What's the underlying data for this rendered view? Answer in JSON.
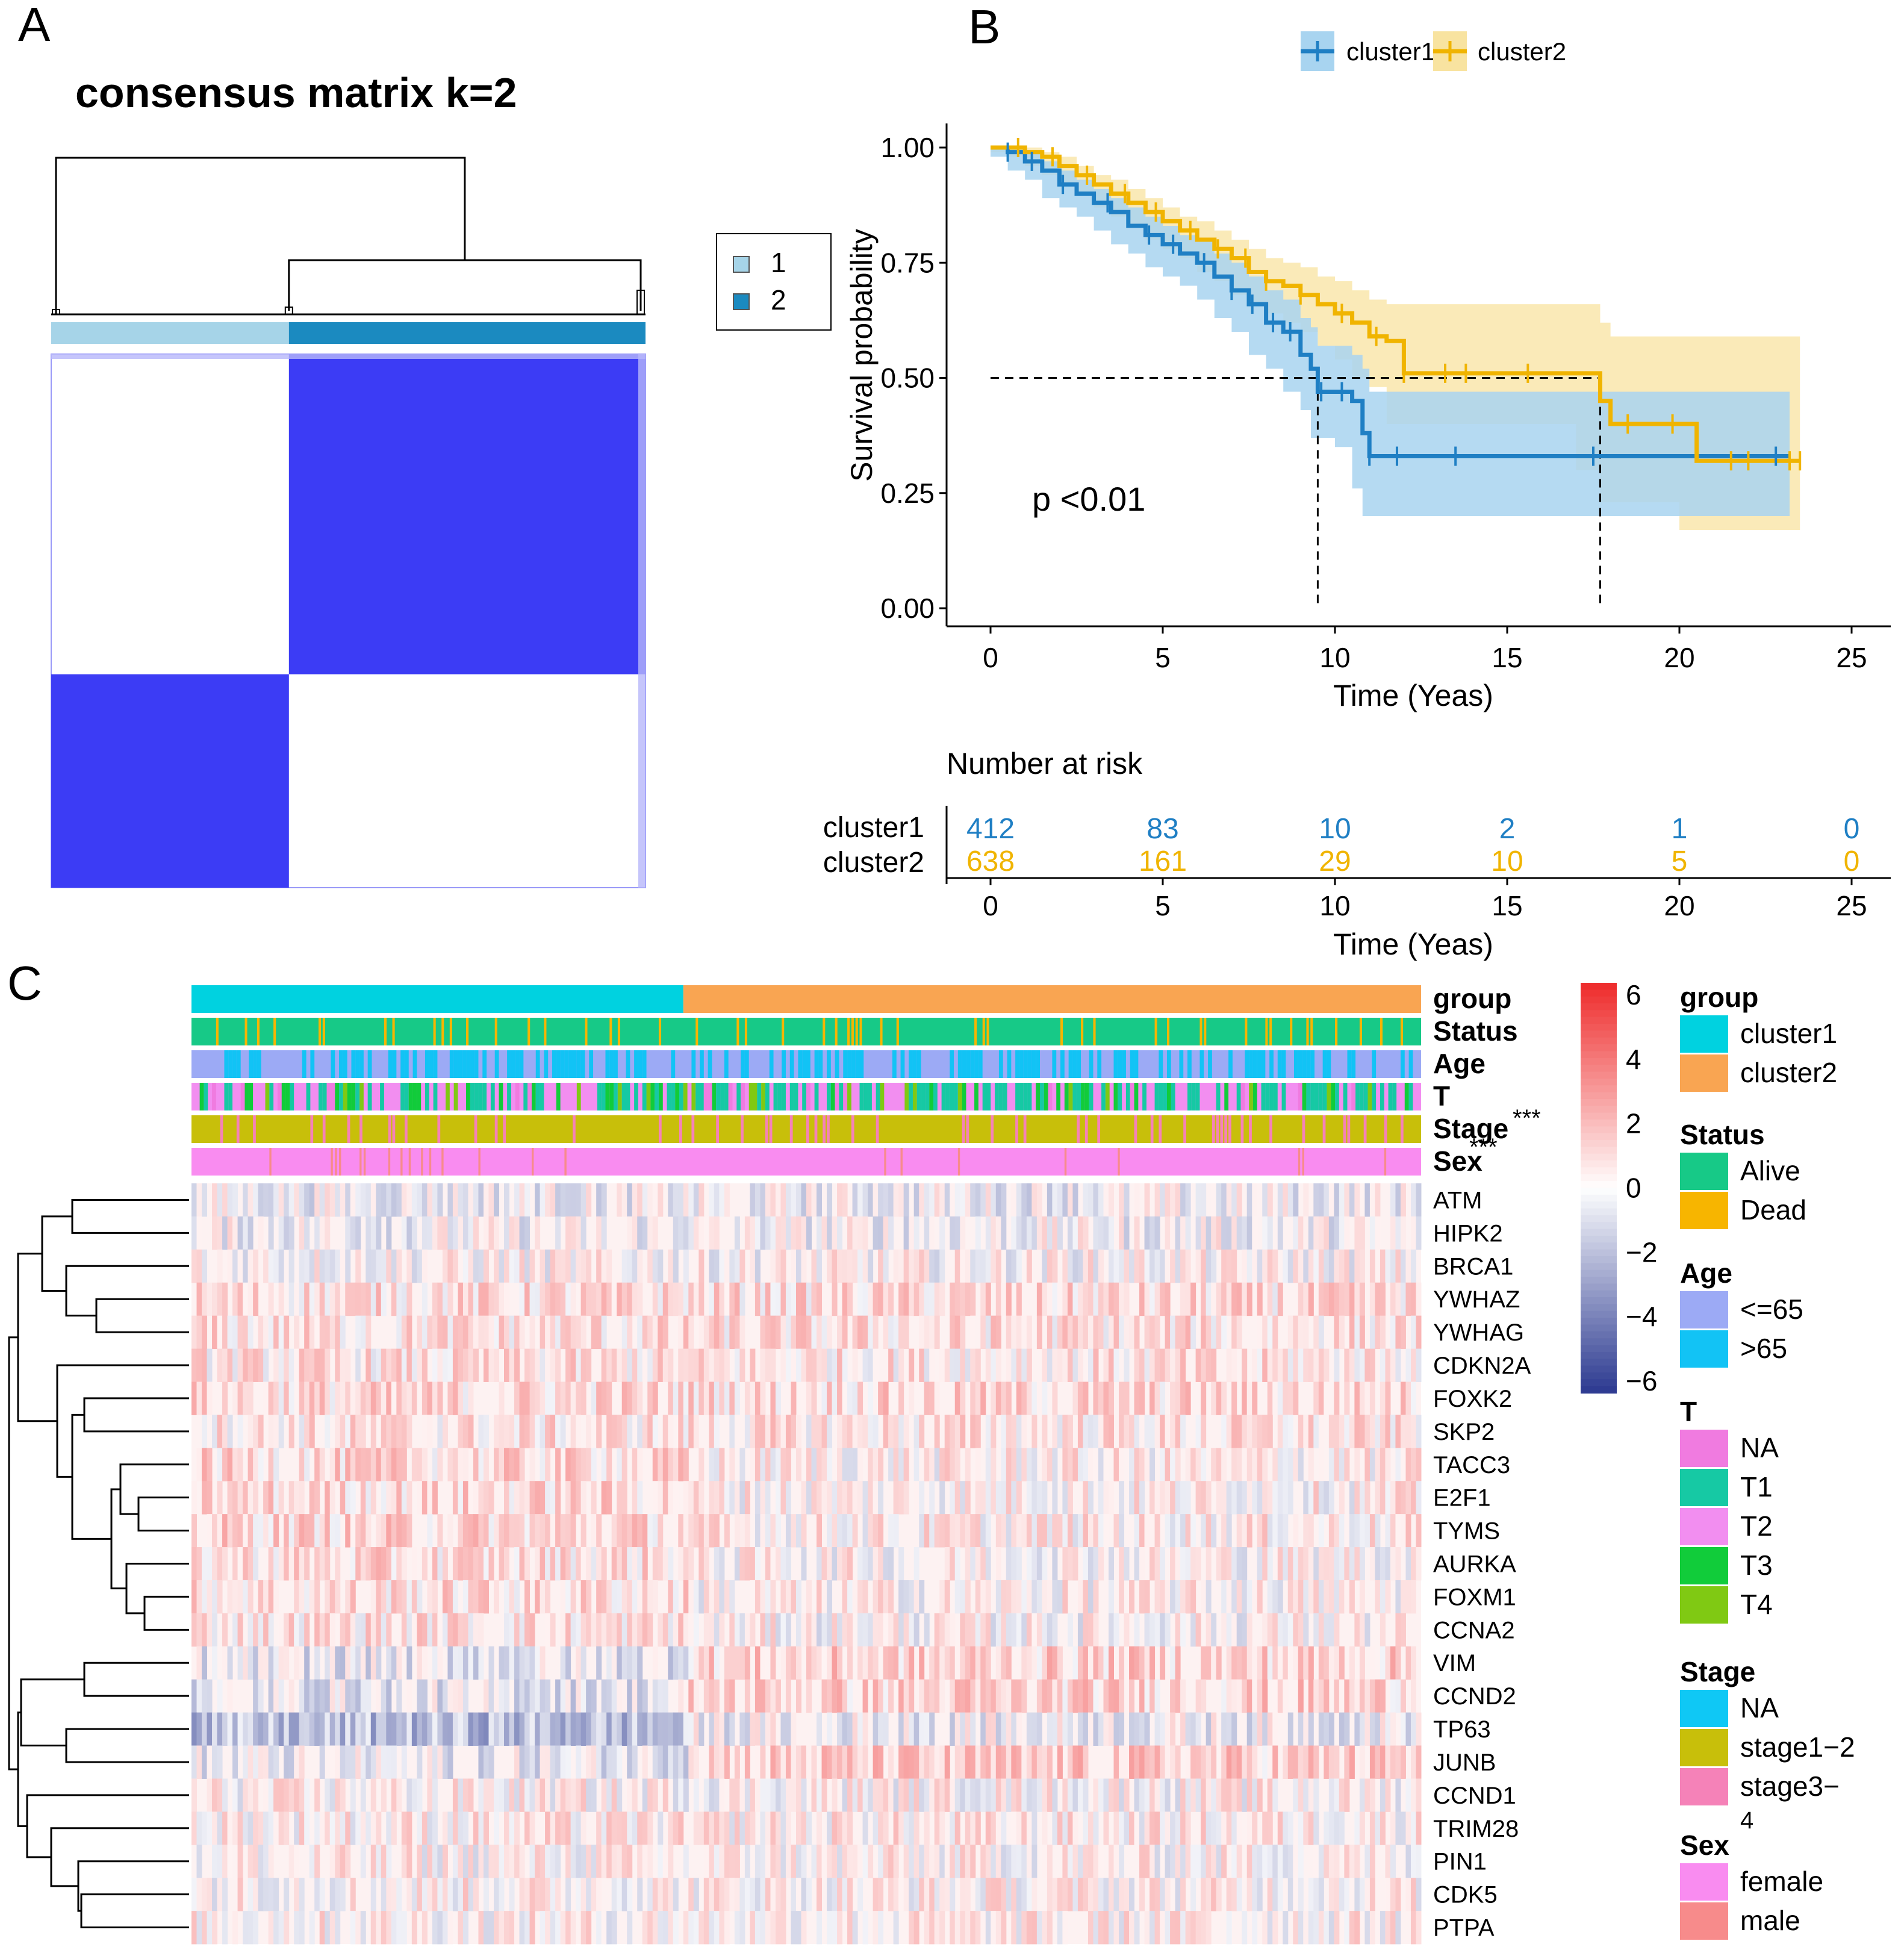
{
  "panels": {
    "a": "A",
    "b": "B",
    "c": "C"
  },
  "colors": {
    "cluster1": "#1f7fc4",
    "cluster1_band": "#a8d4f0",
    "cluster2": "#f0b400",
    "cluster2_band": "#f8e3a0",
    "consensus_blue": "#3c3cf5",
    "consensus_c1": "#a6d4e8",
    "consensus_c2": "#1b8ac0"
  },
  "chart_data": [
    {
      "type": "heatmap",
      "title": "consensus matrix k=2",
      "legend": [
        {
          "label": "1",
          "color": "#a6d4e8"
        },
        {
          "label": "2",
          "color": "#1b8ac0"
        }
      ],
      "legend_position": "right",
      "clusters": [
        {
          "name": "1",
          "fraction": 0.4
        },
        {
          "name": "2",
          "fraction": 0.6
        }
      ],
      "value_range": [
        0,
        1
      ]
    },
    {
      "type": "line",
      "subtype": "kaplan-meier",
      "xlabel": "Time (Yeas)",
      "ylabel": "Survival probability",
      "xlim": [
        0,
        25
      ],
      "ylim": [
        0,
        1
      ],
      "xticks": [
        "0",
        "5",
        "10",
        "15",
        "20",
        "25"
      ],
      "yticks": [
        "0.00",
        "0.25",
        "0.50",
        "0.75",
        "1.00"
      ],
      "annotation": "p <0.01",
      "legend_position": "top",
      "median_survival": {
        "cluster1": 9.5,
        "cluster2": 17.7
      },
      "series": [
        {
          "name": "cluster1",
          "x": [
            0,
            0.5,
            1,
            1.5,
            2,
            2.5,
            3,
            3.5,
            4,
            4.5,
            5,
            5.5,
            6,
            6.5,
            7,
            7.5,
            8,
            8.5,
            9,
            9.3,
            9.5,
            10,
            10.5,
            10.8,
            11,
            12,
            14,
            16,
            18,
            20,
            22,
            23.2
          ],
          "y": [
            1.0,
            0.99,
            0.97,
            0.95,
            0.92,
            0.9,
            0.88,
            0.86,
            0.83,
            0.81,
            0.79,
            0.77,
            0.75,
            0.72,
            0.69,
            0.66,
            0.62,
            0.6,
            0.55,
            0.52,
            0.47,
            0.47,
            0.45,
            0.38,
            0.33,
            0.33,
            0.33,
            0.33,
            0.33,
            0.33,
            0.33,
            0.33
          ],
          "upper": [
            1.0,
            1.0,
            0.99,
            0.97,
            0.95,
            0.93,
            0.91,
            0.89,
            0.87,
            0.85,
            0.83,
            0.81,
            0.8,
            0.77,
            0.75,
            0.72,
            0.69,
            0.67,
            0.63,
            0.61,
            0.57,
            0.57,
            0.55,
            0.52,
            0.47,
            0.47,
            0.47,
            0.47,
            0.47,
            0.47,
            0.47,
            0.47
          ],
          "lower": [
            1.0,
            0.98,
            0.95,
            0.93,
            0.89,
            0.87,
            0.85,
            0.82,
            0.79,
            0.77,
            0.74,
            0.72,
            0.7,
            0.67,
            0.63,
            0.6,
            0.55,
            0.52,
            0.47,
            0.43,
            0.37,
            0.37,
            0.35,
            0.26,
            0.2,
            0.2,
            0.2,
            0.2,
            0.2,
            0.2,
            0.2,
            0.2
          ]
        },
        {
          "name": "cluster2",
          "x": [
            0,
            0.5,
            1,
            1.5,
            2,
            2.5,
            3,
            3.5,
            4,
            4.5,
            5,
            5.5,
            6,
            6.5,
            7,
            7.5,
            8,
            8.5,
            9,
            9.5,
            10,
            10.5,
            11,
            11.5,
            12,
            13,
            14,
            15,
            16,
            17,
            17.7,
            18,
            19,
            20,
            20.5,
            21,
            22,
            23,
            23.5
          ],
          "y": [
            1.0,
            1.0,
            0.99,
            0.98,
            0.96,
            0.94,
            0.92,
            0.9,
            0.88,
            0.86,
            0.84,
            0.82,
            0.8,
            0.78,
            0.76,
            0.73,
            0.71,
            0.7,
            0.68,
            0.66,
            0.64,
            0.62,
            0.59,
            0.58,
            0.51,
            0.51,
            0.51,
            0.51,
            0.51,
            0.51,
            0.45,
            0.4,
            0.4,
            0.4,
            0.32,
            0.32,
            0.32,
            0.32,
            0.32
          ],
          "upper": [
            1.0,
            1.0,
            1.0,
            0.99,
            0.98,
            0.96,
            0.94,
            0.93,
            0.91,
            0.89,
            0.87,
            0.85,
            0.84,
            0.82,
            0.8,
            0.78,
            0.76,
            0.75,
            0.74,
            0.72,
            0.71,
            0.69,
            0.67,
            0.66,
            0.66,
            0.66,
            0.66,
            0.66,
            0.66,
            0.66,
            0.62,
            0.59,
            0.59,
            0.59,
            0.59,
            0.59,
            0.59,
            0.59,
            0.59
          ],
          "lower": [
            1.0,
            0.99,
            0.98,
            0.96,
            0.94,
            0.92,
            0.9,
            0.87,
            0.85,
            0.83,
            0.8,
            0.78,
            0.76,
            0.73,
            0.71,
            0.68,
            0.66,
            0.64,
            0.62,
            0.6,
            0.57,
            0.54,
            0.5,
            0.48,
            0.4,
            0.4,
            0.4,
            0.4,
            0.4,
            0.4,
            0.3,
            0.23,
            0.23,
            0.23,
            0.17,
            0.17,
            0.17,
            0.17,
            0.17
          ]
        }
      ],
      "censor_marks": {
        "cluster1": [
          0.5,
          1.2,
          2.1,
          3.4,
          4.6,
          5.3,
          6.2,
          7.0,
          7.6,
          8.2,
          8.7,
          9.6,
          10.2,
          11.0,
          11.8,
          13.5,
          17.5,
          22.8
        ],
        "cluster2": [
          0.8,
          1.8,
          2.8,
          3.9,
          4.8,
          5.8,
          6.6,
          7.4,
          8.0,
          9.0,
          10.2,
          11.2,
          12.0,
          13.2,
          13.8,
          15.6,
          18.5,
          19.8,
          21.5,
          22.0,
          23.2,
          23.5
        ]
      },
      "risk_table": {
        "title": "Number at risk",
        "rows": [
          {
            "name": "cluster1",
            "values": [
              "412",
              "83",
              "10",
              "2",
              "1",
              "0"
            ]
          },
          {
            "name": "cluster2",
            "values": [
              "638",
              "161",
              "29",
              "10",
              "5",
              "0"
            ]
          }
        ],
        "xlabel": "Time (Yeas)",
        "xticks": [
          "0",
          "5",
          "10",
          "15",
          "20",
          "25"
        ]
      }
    },
    {
      "type": "heatmap",
      "annotation_tracks": [
        "group",
        "Status",
        "Age",
        "T",
        "Stage",
        "Sex"
      ],
      "annotation_marks": [
        "***",
        "***"
      ],
      "genes": [
        "ATM",
        "HIPK2",
        "BRCA1",
        "YWHAZ",
        "YWHAG",
        "CDKN2A",
        "FOXK2",
        "SKP2",
        "TACC3",
        "E2F1",
        "TYMS",
        "AURKA",
        "FOXM1",
        "CCNA2",
        "VIM",
        "CCND2",
        "TP63",
        "JUNB",
        "CCND1",
        "TRIM28",
        "PIN1",
        "CDK5",
        "PTPA"
      ],
      "group_split": {
        "cluster1": 0.4,
        "cluster2": 0.6
      },
      "colorbar": {
        "ticks": [
          "6",
          "4",
          "2",
          "0",
          "−2",
          "−4",
          "−6"
        ],
        "range": [
          -6,
          6
        ],
        "low": "#2b3990",
        "mid": "#ffffff",
        "high": "#ee2a2a"
      },
      "legends": [
        {
          "title": "group",
          "items": [
            {
              "label": "cluster1",
              "color": "#00d2e0"
            },
            {
              "label": "cluster2",
              "color": "#f9a552"
            }
          ]
        },
        {
          "title": "Status",
          "items": [
            {
              "label": "Alive",
              "color": "#17c987"
            },
            {
              "label": "Dead",
              "color": "#f7b500"
            }
          ]
        },
        {
          "title": "Age",
          "items": [
            {
              "label": "<=65",
              "color": "#9caaf5"
            },
            {
              "label": ">65",
              "color": "#12c3f5"
            }
          ]
        },
        {
          "title": "T",
          "items": [
            {
              "label": "NA",
              "color": "#f07be0"
            },
            {
              "label": "T1",
              "color": "#16c9a4"
            },
            {
              "label": "T2",
              "color": "#f28ef0"
            },
            {
              "label": "T3",
              "color": "#11cc3a"
            },
            {
              "label": "T4",
              "color": "#80c913"
            }
          ]
        },
        {
          "title": "Stage",
          "items": [
            {
              "label": "NA",
              "color": "#0fc8f5"
            },
            {
              "label": "stage1−2",
              "color": "#c8bf0a"
            },
            {
              "label": "stage3−",
              "color": "#f582b8"
            }
          ]
        },
        {
          "title": "Sex",
          "items": [
            {
              "label": "female",
              "color": "#f98cf0"
            },
            {
              "label": "male",
              "color": "#f78b8b"
            }
          ]
        }
      ],
      "stage_label_wrap": "4"
    }
  ]
}
